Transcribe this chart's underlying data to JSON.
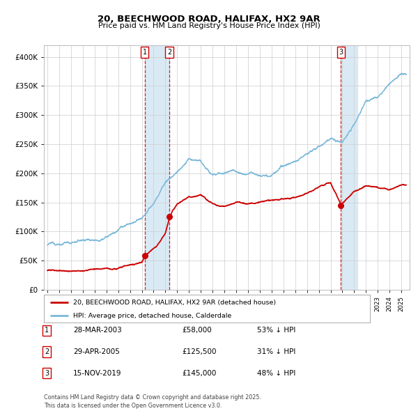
{
  "title": "20, BEECHWOOD ROAD, HALIFAX, HX2 9AR",
  "subtitle": "Price paid vs. HM Land Registry's House Price Index (HPI)",
  "legend_line1": "20, BEECHWOOD ROAD, HALIFAX, HX2 9AR (detached house)",
  "legend_line2": "HPI: Average price, detached house, Calderdale",
  "transactions": [
    {
      "num": 1,
      "date": "28-MAR-2003",
      "price": 58000,
      "pct": "53% ↓ HPI",
      "year": 2003.24
    },
    {
      "num": 2,
      "date": "29-APR-2005",
      "price": 125500,
      "pct": "31% ↓ HPI",
      "year": 2005.33
    },
    {
      "num": 3,
      "date": "15-NOV-2019",
      "price": 145000,
      "pct": "48% ↓ HPI",
      "year": 2019.88
    }
  ],
  "footer": "Contains HM Land Registry data © Crown copyright and database right 2025.\nThis data is licensed under the Open Government Licence v3.0.",
  "hpi_color": "#7ab8d9",
  "price_color": "#cc0000",
  "background_color": "#ffffff",
  "shading_color": "#daeaf5",
  "ylim": [
    0,
    420000
  ],
  "ytick_step": 50000,
  "xlim_start": 1994.7,
  "xlim_end": 2025.7
}
